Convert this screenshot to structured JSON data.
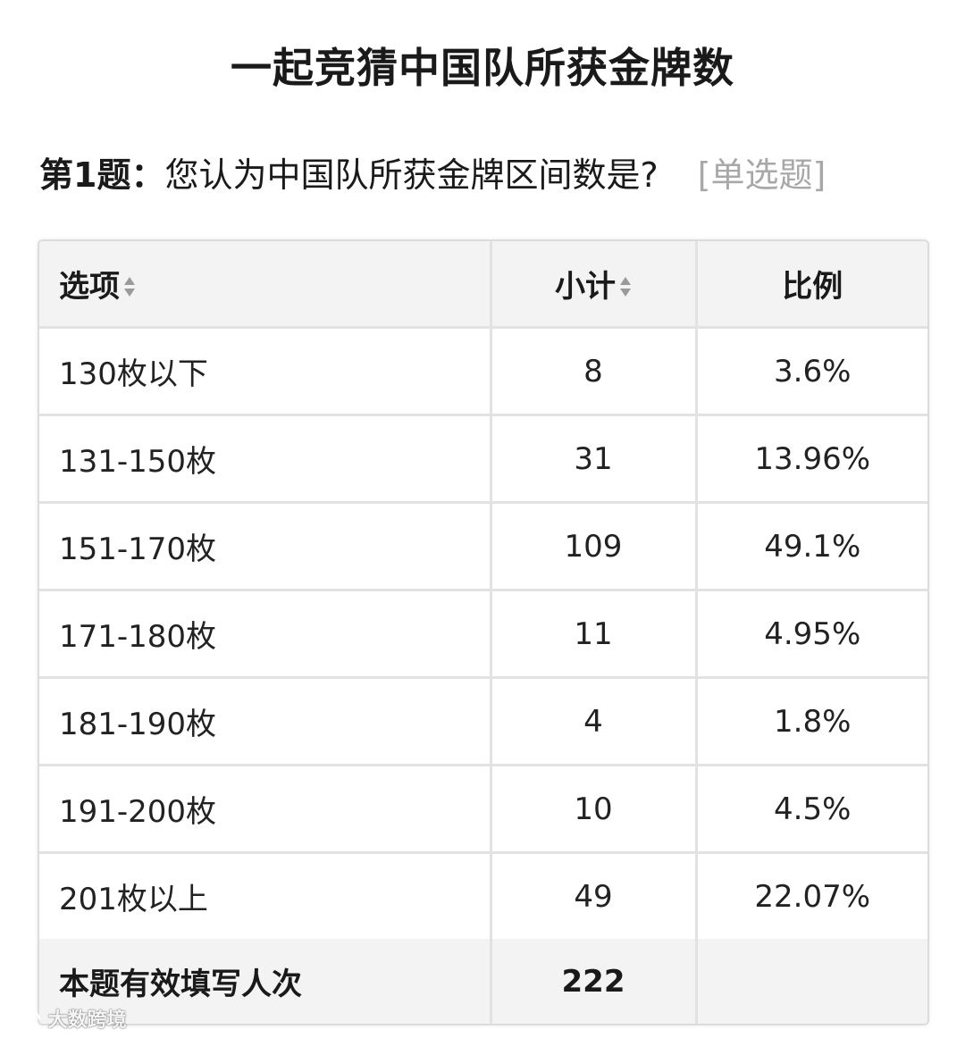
{
  "title": "一起竞猜中国队所获金牌数",
  "question": {
    "label": "第1题：",
    "text": "您认为中国队所获金牌区间数是?",
    "type": "[单选题]"
  },
  "table": {
    "headers": {
      "option": "选项",
      "count": "小计",
      "ratio": "比例"
    },
    "sortable_icon": "sort-arrows-icon",
    "rows": [
      {
        "option": "130枚以下",
        "count": "8",
        "ratio": "3.6%"
      },
      {
        "option": "131-150枚",
        "count": "31",
        "ratio": "13.96%"
      },
      {
        "option": "151-170枚",
        "count": "109",
        "ratio": "49.1%"
      },
      {
        "option": "171-180枚",
        "count": "11",
        "ratio": "4.95%"
      },
      {
        "option": "181-190枚",
        "count": "4",
        "ratio": "1.8%"
      },
      {
        "option": "191-200枚",
        "count": "10",
        "ratio": "4.5%"
      },
      {
        "option": "201枚以上",
        "count": "49",
        "ratio": "22.07%"
      }
    ],
    "footer": {
      "label": "本题有效填写人次",
      "count": "222",
      "ratio": ""
    }
  },
  "watermark": "大数跨境",
  "colors": {
    "header_bg": "#f3f3f3",
    "border": "#e2e2e2",
    "question_type": "#a8a8a8"
  }
}
